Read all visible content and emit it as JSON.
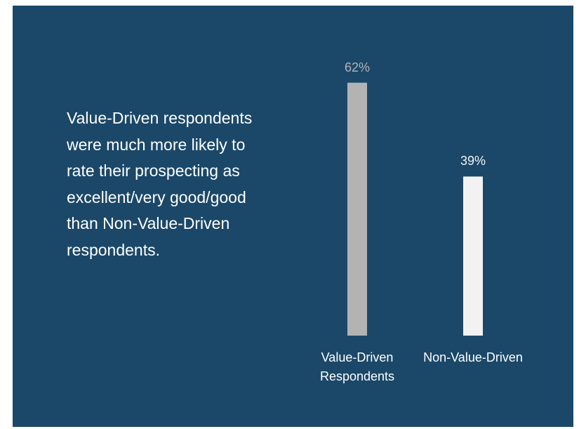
{
  "chart_data": {
    "type": "bar",
    "annotation": "Value-Driven respondents were much more likely to rate their prospecting as excellent/very good/good than Non-Value-Driven respondents.",
    "categories": [
      "Value-Driven Respondents",
      "Non-Value-Driven"
    ],
    "values": [
      62,
      39
    ],
    "value_labels": [
      "62%",
      "39%"
    ],
    "colors": [
      "#b3b3b3",
      "#f2f2f2"
    ],
    "ylim": [
      0,
      100
    ]
  }
}
